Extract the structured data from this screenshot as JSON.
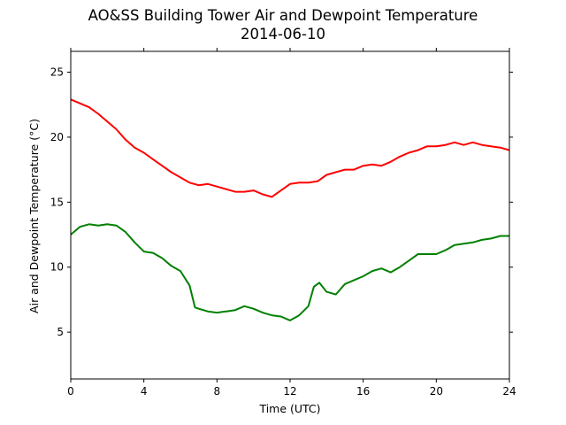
{
  "chart_data": {
    "type": "line",
    "title": "AO&SS Building Tower Air and Dewpoint Temperature",
    "subtitle": "2014-06-10",
    "xlabel": "Time (UTC)",
    "ylabel": "Air and Dewpoint Temperature (°C)",
    "xlim": [
      0,
      24
    ],
    "ylim": [
      1.4,
      26.6
    ],
    "xticks": [
      0,
      4,
      8,
      12,
      16,
      20,
      24
    ],
    "yticks": [
      5,
      10,
      15,
      20,
      25
    ],
    "grid": false,
    "legend": "none",
    "series": [
      {
        "color": "#ff0000",
        "x": [
          0,
          0.5,
          1,
          1.5,
          2,
          2.5,
          3,
          3.5,
          4,
          4.5,
          5,
          5.5,
          6,
          6.5,
          7,
          7.5,
          8,
          8.5,
          9,
          9.5,
          10,
          10.5,
          11,
          11.5,
          12,
          12.5,
          13,
          13.5,
          14,
          14.5,
          15,
          15.5,
          16,
          16.5,
          17,
          17.5,
          18,
          18.5,
          19,
          19.5,
          20,
          20.5,
          21,
          21.5,
          22,
          22.5,
          23,
          23.5,
          24
        ],
        "values": [
          22.9,
          22.6,
          22.3,
          21.8,
          21.2,
          20.6,
          19.8,
          19.2,
          18.8,
          18.3,
          17.8,
          17.3,
          16.9,
          16.5,
          16.3,
          16.4,
          16.2,
          16.0,
          15.8,
          15.8,
          15.9,
          15.6,
          15.4,
          15.9,
          16.4,
          16.5,
          16.5,
          16.6,
          17.1,
          17.3,
          17.5,
          17.5,
          17.8,
          17.9,
          17.8,
          18.1,
          18.5,
          18.8,
          19.0,
          19.3,
          19.3,
          19.4,
          19.6,
          19.4,
          19.6,
          19.4,
          19.3,
          19.2,
          19.0
        ]
      },
      {
        "color": "#008000",
        "x": [
          0,
          0.5,
          1,
          1.5,
          2,
          2.5,
          3,
          3.5,
          4,
          4.5,
          5,
          5.5,
          6,
          6.5,
          6.8,
          7,
          7.5,
          8,
          8.5,
          9,
          9.5,
          10,
          10.5,
          11,
          11.5,
          12,
          12.5,
          13,
          13.3,
          13.6,
          14,
          14.5,
          15,
          15.5,
          16,
          16.5,
          17,
          17.5,
          18,
          18.5,
          19,
          19.5,
          20,
          20.5,
          21,
          21.5,
          22,
          22.5,
          23,
          23.5,
          24
        ],
        "values": [
          12.5,
          13.1,
          13.3,
          13.2,
          13.3,
          13.2,
          12.7,
          11.9,
          11.2,
          11.1,
          10.7,
          10.1,
          9.7,
          8.6,
          6.9,
          6.8,
          6.6,
          6.5,
          6.6,
          6.7,
          7.0,
          6.8,
          6.5,
          6.3,
          6.2,
          5.9,
          6.3,
          7.0,
          8.5,
          8.8,
          8.1,
          7.9,
          8.7,
          9.0,
          9.3,
          9.7,
          9.9,
          9.6,
          10.0,
          10.5,
          11.0,
          11.0,
          11.0,
          11.3,
          11.7,
          11.8,
          11.9,
          12.1,
          12.2,
          12.4,
          12.4
        ]
      }
    ]
  }
}
